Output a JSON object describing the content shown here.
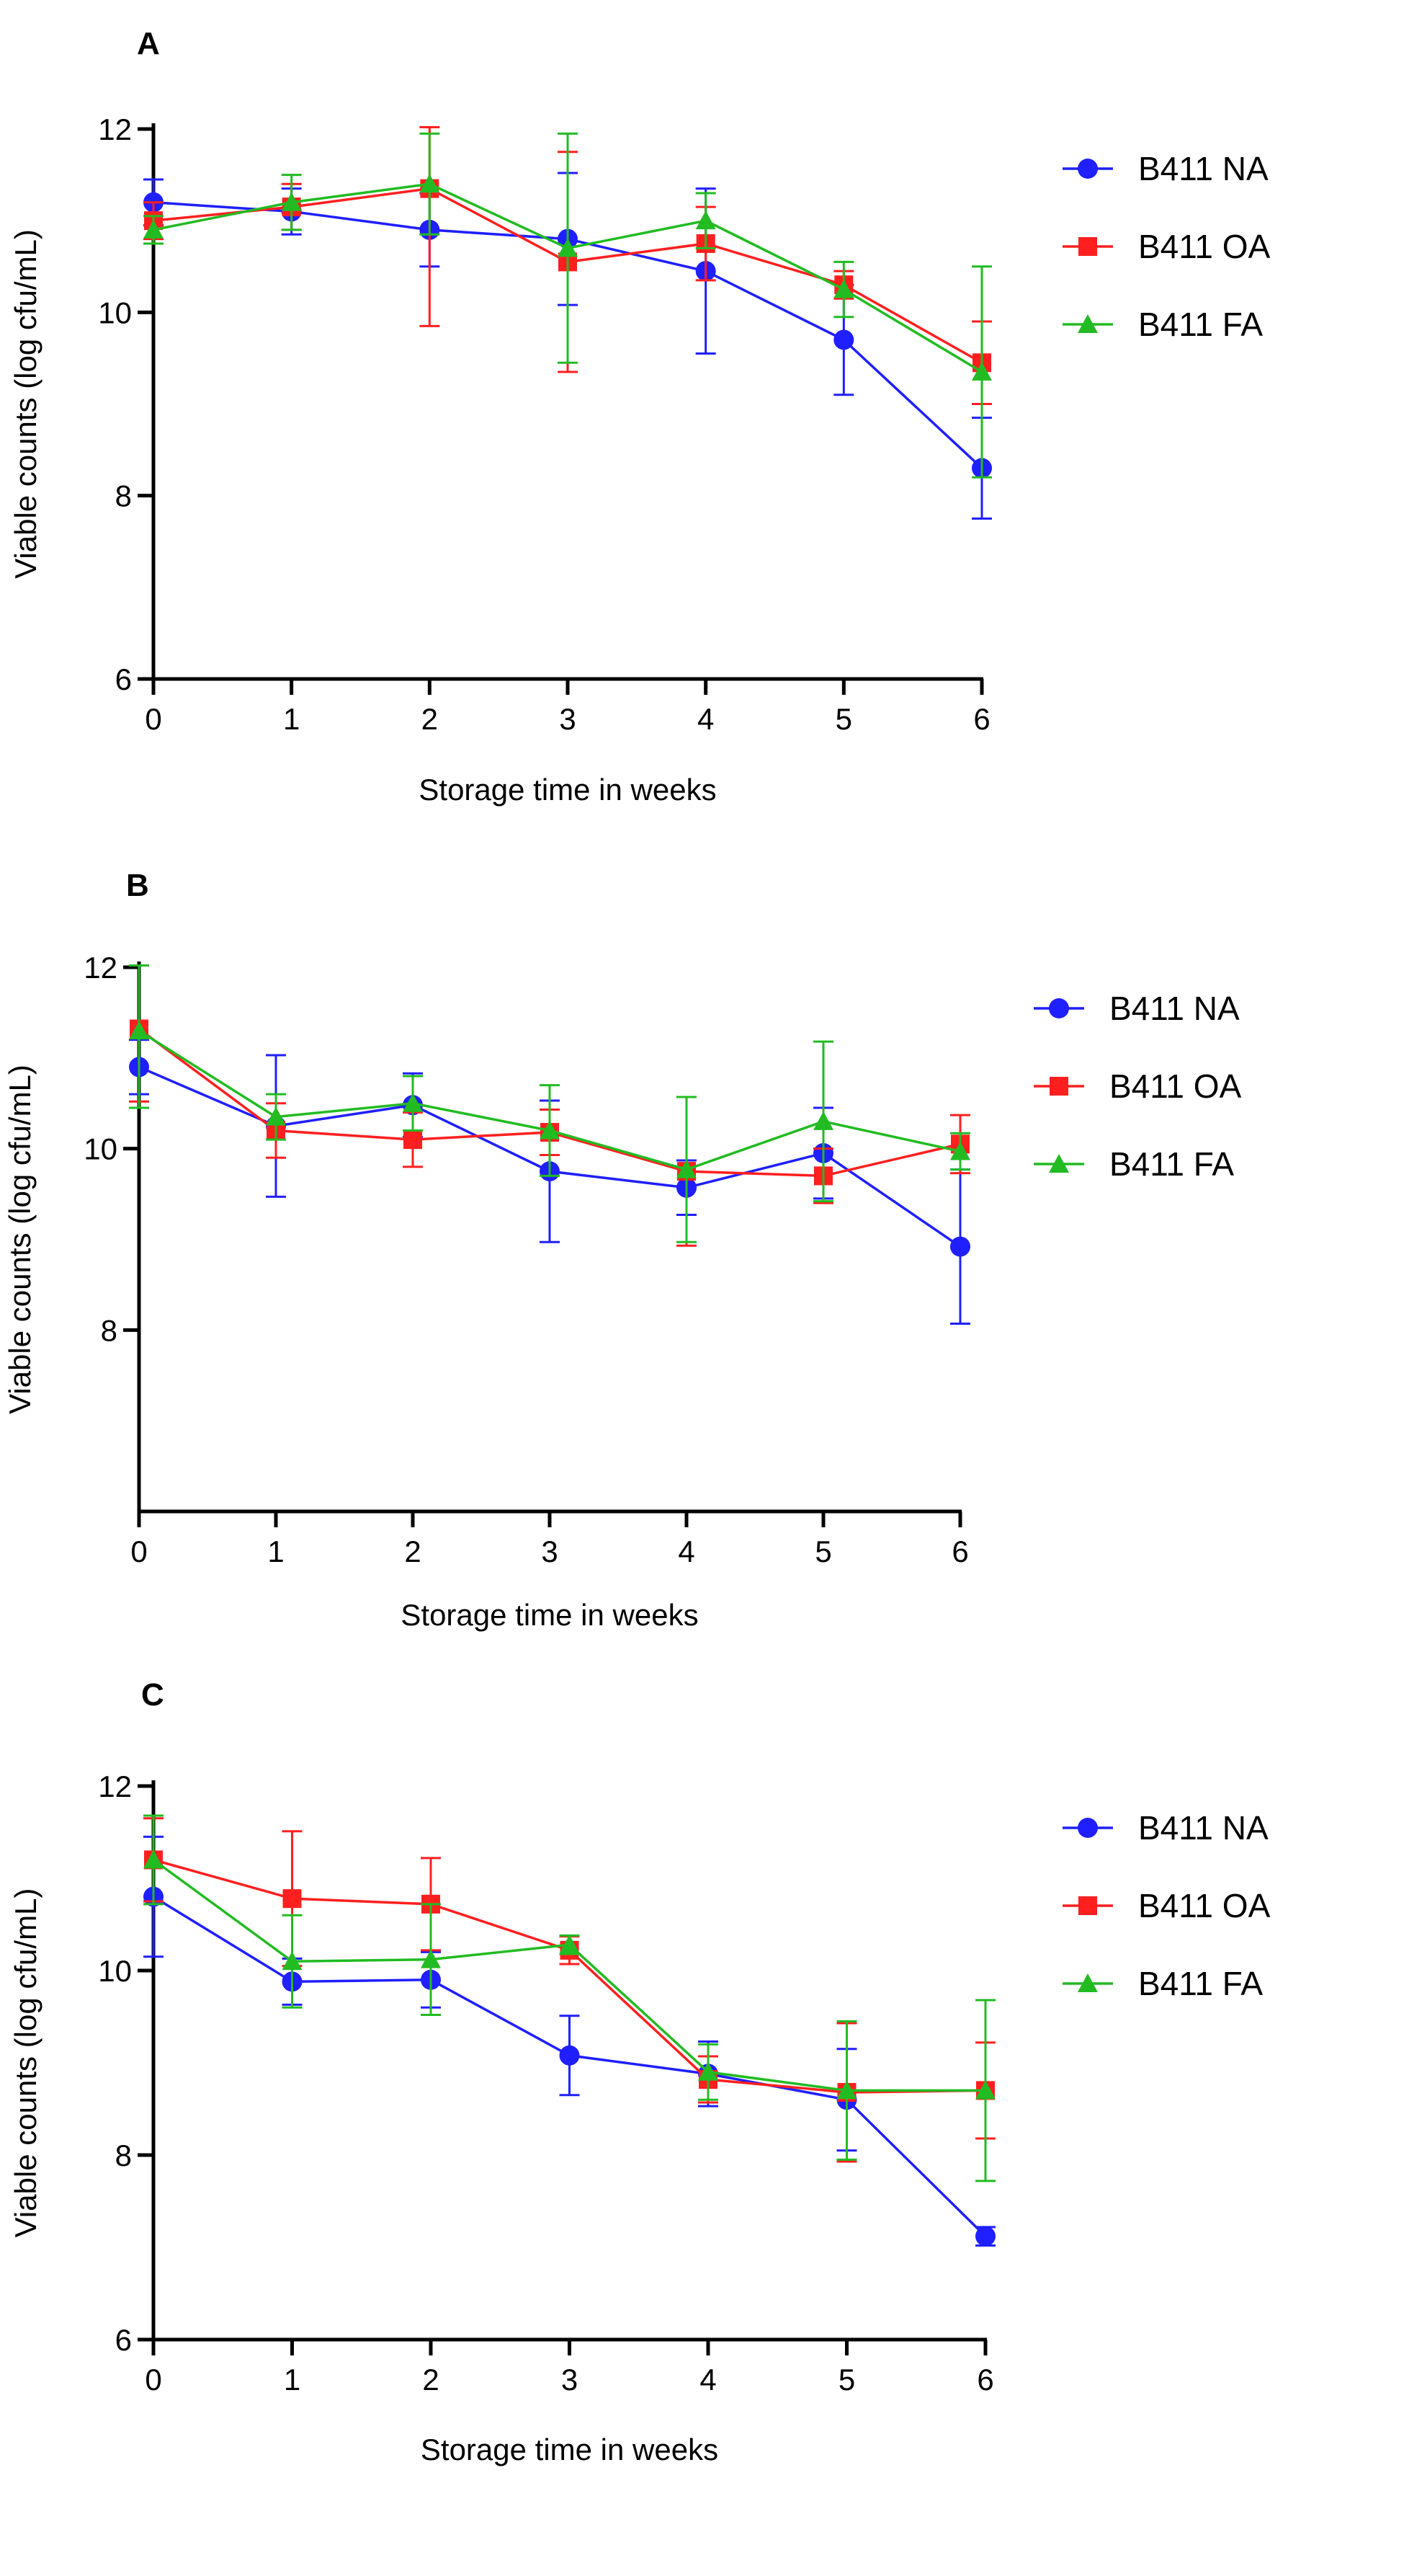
{
  "chart_data": [
    {
      "type": "line",
      "panel_label": "A",
      "xlabel": "Storage time in weeks",
      "ylabel": "Viable counts (log cfu/mL)",
      "x": [
        0,
        1,
        2,
        3,
        4,
        5,
        6
      ],
      "x_ticks": [
        "0",
        "1",
        "2",
        "3",
        "4",
        "5",
        "6"
      ],
      "y_ticks": [
        "6",
        "8",
        "10",
        "12"
      ],
      "ylim": [
        6,
        12
      ],
      "xlim": [
        0,
        6
      ],
      "legend_position": "right",
      "series": [
        {
          "name": "B411 NA",
          "color": "#1f1fff",
          "marker": "circle",
          "values": [
            11.2,
            11.1,
            10.9,
            10.8,
            10.45,
            9.7,
            8.3
          ],
          "errors": [
            0.25,
            0.25,
            0.4,
            0.72,
            0.9,
            0.6,
            0.55
          ]
        },
        {
          "name": "B411 OA",
          "color": "#ff1f1f",
          "marker": "square",
          "values": [
            11.0,
            11.15,
            11.35,
            10.55,
            10.75,
            10.3,
            9.45
          ],
          "errors": [
            0.2,
            0.25,
            1.5,
            1.2,
            0.4,
            0.15,
            0.45
          ]
        },
        {
          "name": "B411 FA",
          "color": "#22bb22",
          "marker": "triangle",
          "values": [
            10.9,
            11.2,
            11.4,
            10.7,
            11.0,
            10.25,
            9.35
          ],
          "errors": [
            0.15,
            0.3,
            0.55,
            1.25,
            0.3,
            0.3,
            1.15
          ]
        }
      ]
    },
    {
      "type": "line",
      "panel_label": "B",
      "xlabel": "Storage time in weeks",
      "ylabel": "Viable counts (log cfu/mL)",
      "x": [
        0,
        1,
        2,
        3,
        4,
        5,
        6
      ],
      "x_ticks": [
        "0",
        "1",
        "2",
        "3",
        "4",
        "5",
        "6"
      ],
      "y_ticks": [
        "8",
        "10",
        "12"
      ],
      "ylim": [
        6,
        12
      ],
      "xlim": [
        0,
        6
      ],
      "legend_position": "right",
      "series": [
        {
          "name": "B411 NA",
          "color": "#1f1fff",
          "marker": "circle",
          "values": [
            10.9,
            10.25,
            10.48,
            9.75,
            9.57,
            9.95,
            8.92
          ],
          "errors": [
            0.3,
            0.78,
            0.35,
            0.78,
            0.3,
            0.5,
            0.85
          ]
        },
        {
          "name": "B411 OA",
          "color": "#ff1f1f",
          "marker": "square",
          "values": [
            11.32,
            10.2,
            10.1,
            10.18,
            9.75,
            9.7,
            10.05
          ],
          "errors": [
            0.8,
            0.3,
            0.3,
            0.25,
            0.82,
            0.3,
            0.32
          ]
        },
        {
          "name": "B411 FA",
          "color": "#22bb22",
          "marker": "triangle",
          "values": [
            11.3,
            10.35,
            10.5,
            10.2,
            9.77,
            10.3,
            9.97
          ],
          "errors": [
            0.85,
            0.25,
            0.3,
            0.5,
            0.8,
            0.88,
            0.2
          ]
        }
      ]
    },
    {
      "type": "line",
      "panel_label": "C",
      "xlabel": "Storage time in weeks",
      "ylabel": "Viable counts (log cfu/mL)",
      "x": [
        0,
        1,
        2,
        3,
        4,
        5,
        6
      ],
      "x_ticks": [
        "0",
        "1",
        "2",
        "3",
        "4",
        "5",
        "6"
      ],
      "y_ticks": [
        "6",
        "8",
        "10",
        "12"
      ],
      "ylim": [
        6,
        12
      ],
      "xlim": [
        0,
        6
      ],
      "legend_position": "right",
      "series": [
        {
          "name": "B411 NA",
          "color": "#1f1fff",
          "marker": "circle",
          "values": [
            10.8,
            9.88,
            9.9,
            9.08,
            8.88,
            8.6,
            7.12
          ],
          "errors": [
            0.65,
            0.25,
            0.3,
            0.43,
            0.35,
            0.55,
            0.1
          ]
        },
        {
          "name": "B411 OA",
          "color": "#ff1f1f",
          "marker": "square",
          "values": [
            11.2,
            10.78,
            10.72,
            10.22,
            8.82,
            8.68,
            8.7
          ],
          "errors": [
            0.45,
            0.73,
            0.5,
            0.15,
            0.25,
            0.75,
            0.52
          ]
        },
        {
          "name": "B411 FA",
          "color": "#22bb22",
          "marker": "triangle",
          "values": [
            11.2,
            10.1,
            10.12,
            10.28,
            8.9,
            8.7,
            8.7
          ],
          "errors": [
            0.48,
            0.5,
            0.6,
            0.1,
            0.3,
            0.75,
            0.98
          ]
        }
      ]
    }
  ]
}
